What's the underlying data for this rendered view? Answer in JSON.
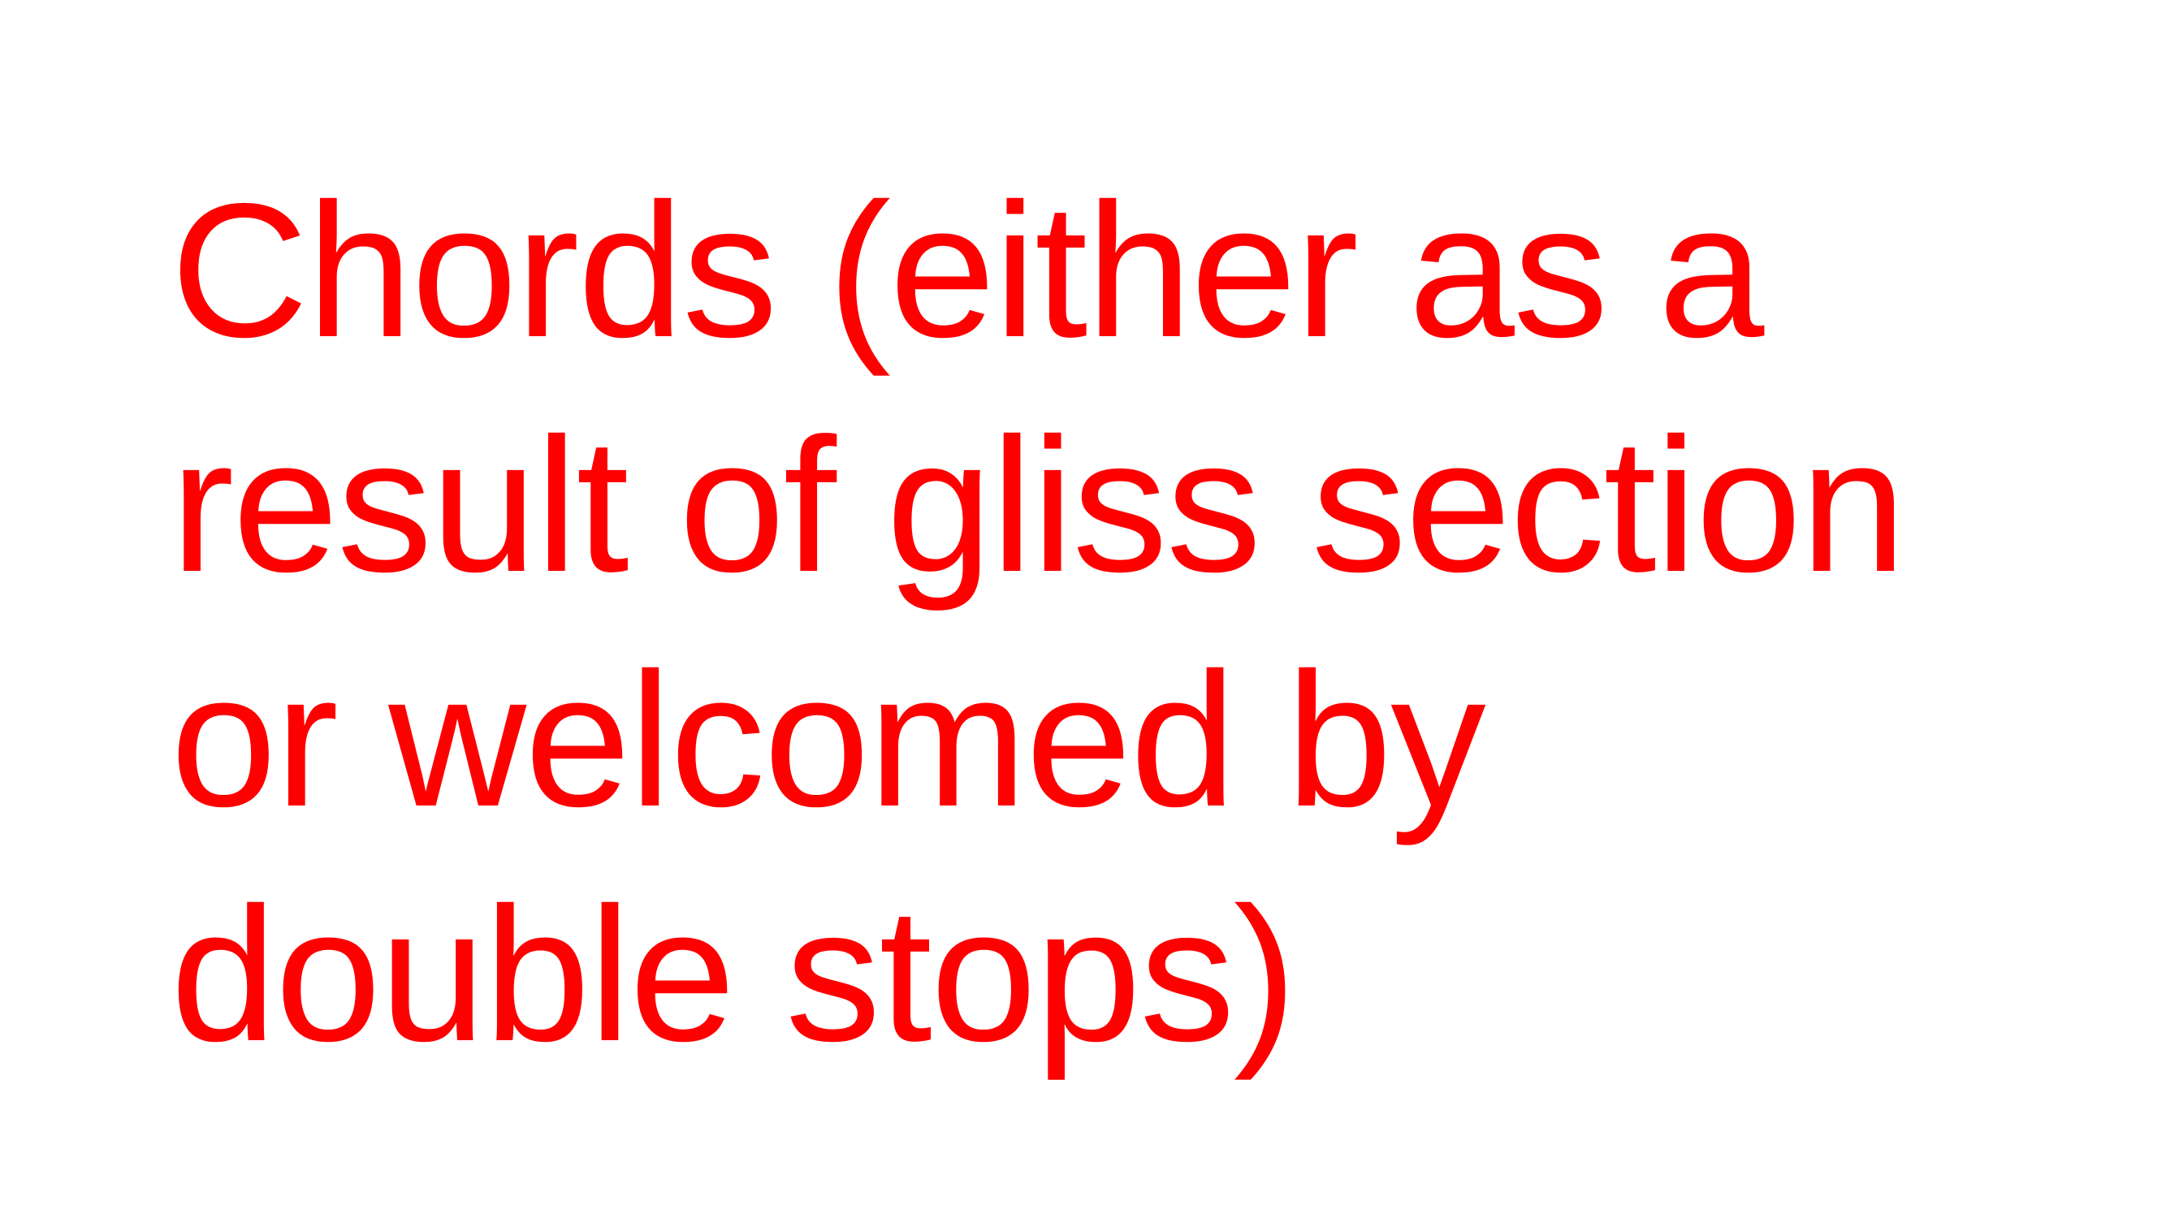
{
  "slide": {
    "text_color": "#ff0000",
    "background_color": "#ffffff",
    "lines": [
      "Chords (either as a",
      "result of gliss section",
      "or welcomed by",
      "double stops)"
    ]
  }
}
